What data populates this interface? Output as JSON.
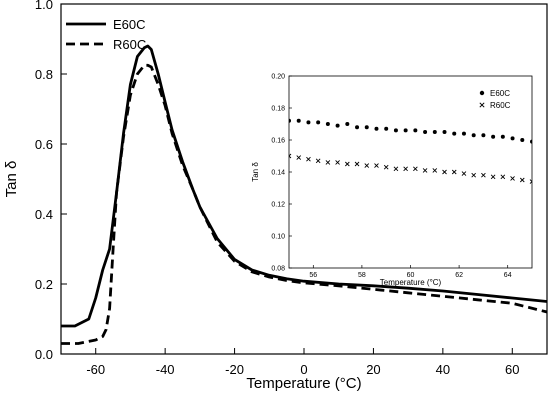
{
  "chart_data": [
    {
      "type": "line",
      "xlabel": "Temperature (°C)",
      "ylabel": "Tan δ",
      "xlim": [
        -70,
        70
      ],
      "ylim": [
        0.0,
        1.0
      ],
      "xticks": [
        -60,
        -40,
        -20,
        0,
        20,
        40,
        60
      ],
      "xtick_labels": [
        "-60",
        "-40",
        "-20",
        "0",
        "20",
        "40",
        "60"
      ],
      "yticks": [
        0.0,
        0.2,
        0.4,
        0.6,
        0.8,
        1.0
      ],
      "ytick_labels": [
        "0.0",
        "0.2",
        "0.4",
        "0.6",
        "0.8",
        "1.0"
      ],
      "grid": false,
      "legend_position": "top-left",
      "series": [
        {
          "name": "E60C",
          "line_style": "solid",
          "color": "#000000",
          "x": [
            -70,
            -66,
            -62,
            -60,
            -58,
            -56,
            -54,
            -52,
            -50,
            -48,
            -46,
            -45,
            -44,
            -42,
            -40,
            -38,
            -35,
            -32,
            -30,
            -25,
            -20,
            -15,
            -10,
            -5,
            0,
            10,
            20,
            30,
            40,
            50,
            60,
            70
          ],
          "y": [
            0.08,
            0.08,
            0.1,
            0.16,
            0.24,
            0.3,
            0.46,
            0.63,
            0.77,
            0.85,
            0.875,
            0.88,
            0.87,
            0.8,
            0.72,
            0.64,
            0.55,
            0.47,
            0.42,
            0.33,
            0.27,
            0.24,
            0.225,
            0.215,
            0.208,
            0.2,
            0.195,
            0.188,
            0.18,
            0.17,
            0.16,
            0.15
          ]
        },
        {
          "name": "R60C",
          "line_style": "dashed",
          "color": "#000000",
          "x": [
            -70,
            -65,
            -60,
            -58,
            -57,
            -56,
            -55,
            -54,
            -52,
            -50,
            -48,
            -46,
            -45,
            -44,
            -42,
            -40,
            -38,
            -35,
            -32,
            -30,
            -25,
            -20,
            -15,
            -10,
            -5,
            0,
            10,
            20,
            30,
            40,
            50,
            60,
            70
          ],
          "y": [
            0.03,
            0.03,
            0.04,
            0.05,
            0.07,
            0.13,
            0.3,
            0.46,
            0.62,
            0.74,
            0.8,
            0.825,
            0.825,
            0.82,
            0.77,
            0.71,
            0.63,
            0.54,
            0.47,
            0.42,
            0.32,
            0.265,
            0.235,
            0.22,
            0.21,
            0.203,
            0.195,
            0.185,
            0.175,
            0.165,
            0.155,
            0.145,
            0.12
          ]
        }
      ]
    },
    {
      "type": "scatter",
      "xlabel": "Temperature (°C)",
      "ylabel": "Tan δ",
      "xlim": [
        55,
        65
      ],
      "ylim": [
        0.08,
        0.2
      ],
      "xticks": [
        56,
        58,
        60,
        62,
        64
      ],
      "xtick_labels": [
        "56",
        "58",
        "60",
        "62",
        "64"
      ],
      "yticks": [
        0.08,
        0.1,
        0.12,
        0.14,
        0.16,
        0.18,
        0.2
      ],
      "ytick_labels": [
        "0.08",
        "0.10",
        "0.12",
        "0.14",
        "0.16",
        "0.18",
        "0.20"
      ],
      "grid": false,
      "legend_position": "top-right",
      "series": [
        {
          "name": "E60C",
          "marker": "circle",
          "color": "#000000",
          "x": [
            55.0,
            55.4,
            55.8,
            56.2,
            56.6,
            57.0,
            57.4,
            57.8,
            58.2,
            58.6,
            59.0,
            59.4,
            59.8,
            60.2,
            60.6,
            61.0,
            61.4,
            61.8,
            62.2,
            62.6,
            63.0,
            63.4,
            63.8,
            64.2,
            64.6,
            65.0
          ],
          "y": [
            0.172,
            0.172,
            0.171,
            0.171,
            0.17,
            0.169,
            0.17,
            0.168,
            0.168,
            0.167,
            0.167,
            0.166,
            0.166,
            0.166,
            0.165,
            0.165,
            0.165,
            0.164,
            0.164,
            0.163,
            0.163,
            0.162,
            0.162,
            0.161,
            0.16,
            0.159
          ]
        },
        {
          "name": "R60C",
          "marker": "x",
          "color": "#000000",
          "x": [
            55.0,
            55.4,
            55.8,
            56.2,
            56.6,
            57.0,
            57.4,
            57.8,
            58.2,
            58.6,
            59.0,
            59.4,
            59.8,
            60.2,
            60.6,
            61.0,
            61.4,
            61.8,
            62.2,
            62.6,
            63.0,
            63.4,
            63.8,
            64.2,
            64.6,
            65.0
          ],
          "y": [
            0.15,
            0.149,
            0.148,
            0.147,
            0.146,
            0.146,
            0.145,
            0.145,
            0.144,
            0.144,
            0.143,
            0.142,
            0.142,
            0.142,
            0.141,
            0.141,
            0.14,
            0.14,
            0.139,
            0.138,
            0.138,
            0.137,
            0.137,
            0.136,
            0.135,
            0.134
          ]
        }
      ]
    }
  ]
}
